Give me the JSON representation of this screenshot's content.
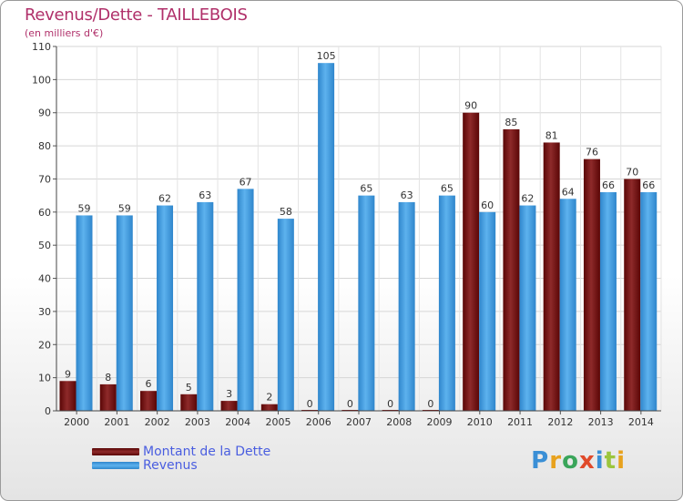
{
  "chart_data": {
    "type": "bar",
    "title": "Revenus/Dette - TAILLEBOIS",
    "subtitle": "(en milliers d'€)",
    "categories": [
      "2000",
      "2001",
      "2002",
      "2003",
      "2004",
      "2005",
      "2006",
      "2007",
      "2008",
      "2009",
      "2010",
      "2011",
      "2012",
      "2013",
      "2014"
    ],
    "series": [
      {
        "name": "Montant de la Dette",
        "color": "#7a0d0d",
        "values": [
          9,
          8,
          6,
          5,
          3,
          2,
          0,
          0,
          0,
          0,
          90,
          85,
          81,
          76,
          70
        ]
      },
      {
        "name": "Revenus",
        "color": "#4aa3e6",
        "values": [
          59,
          59,
          62,
          63,
          67,
          58,
          105,
          65,
          63,
          65,
          60,
          62,
          64,
          66,
          66
        ]
      }
    ],
    "yticks": [
      0,
      10,
      20,
      30,
      40,
      50,
      60,
      70,
      80,
      90,
      100,
      110
    ],
    "ylim": [
      0,
      110
    ],
    "grid": true,
    "legend_position": "bottom-left"
  },
  "logo": {
    "letters": [
      "P",
      "r",
      "o",
      "x",
      "i",
      "t",
      "i"
    ]
  }
}
